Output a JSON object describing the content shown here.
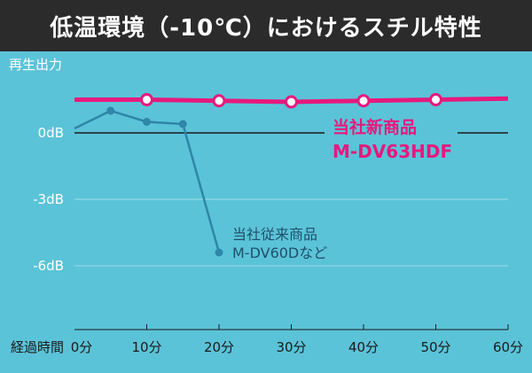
{
  "title": "低温環境（-10℃）におけるスチル特性",
  "colors": {
    "background": "#5bc3d8",
    "header": "#2b2b2b",
    "new_series": "#e6197d",
    "old_series": "#2e86a8",
    "zero_line": "#1a1a1a",
    "grid": "#9fdbe8"
  },
  "chart_data": {
    "type": "line",
    "title": "低温環境（-10℃）におけるスチル特性",
    "ylabel": "再生出力",
    "xlabel": "経過時間",
    "xlim": [
      0,
      60
    ],
    "ylim": [
      -9.5,
      3.5
    ],
    "x_ticks": [
      "0分",
      "10分",
      "20分",
      "30分",
      "40分",
      "50分",
      "60分"
    ],
    "y_ticks": [
      "0dB",
      "-3dB",
      "-6dB"
    ],
    "series": [
      {
        "name": "当社新商品 M-DV63HDF",
        "label_line1": "当社新商品",
        "label_line2": "M-DV63HDF",
        "x": [
          0,
          10,
          20,
          30,
          40,
          50,
          60
        ],
        "y": [
          1.5,
          1.5,
          1.45,
          1.4,
          1.45,
          1.5,
          1.55
        ],
        "marker_x": [
          10,
          20,
          30,
          40,
          50
        ]
      },
      {
        "name": "当社従来商品 M-DV60Dなど",
        "label_line1": "当社従来商品",
        "label_line2": "M-DV60Dなど",
        "x": [
          0,
          5,
          10,
          15,
          20
        ],
        "y": [
          0.2,
          1.0,
          0.5,
          0.4,
          -5.4
        ],
        "marker_x": [
          5,
          10,
          15,
          20
        ]
      }
    ]
  }
}
